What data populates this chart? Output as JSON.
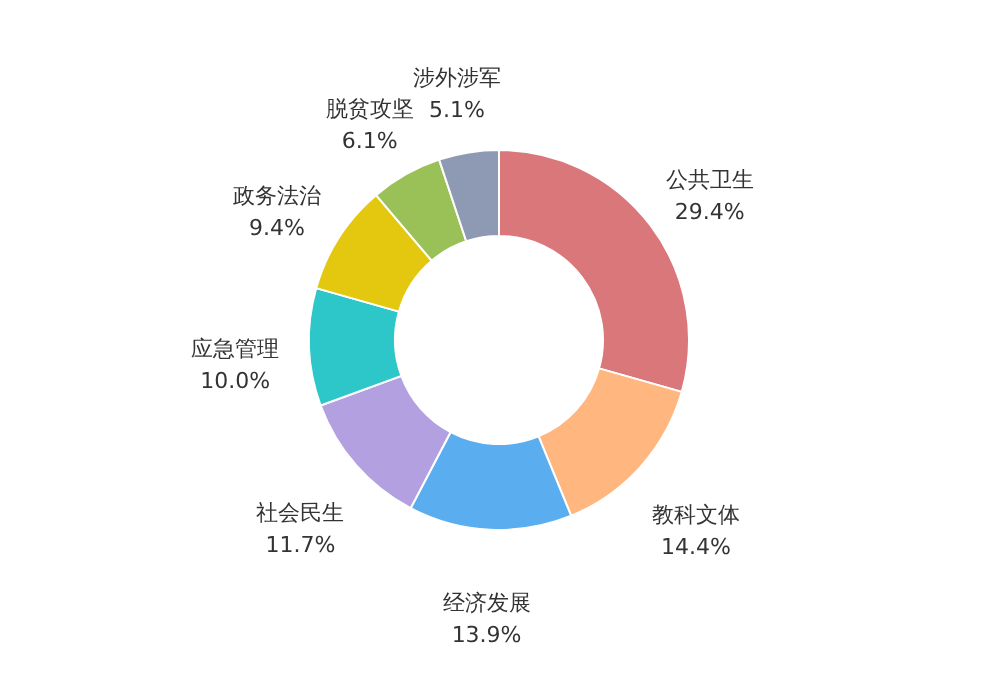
{
  "chart_data": {
    "type": "donut",
    "categories": [
      "公共卫生",
      "教科文体",
      "经济发展",
      "社会民生",
      "应急管理",
      "政务法治",
      "脱贫攻坚",
      "涉外涉军"
    ],
    "values": [
      29.4,
      14.4,
      13.9,
      11.7,
      10.0,
      9.4,
      6.1,
      5.1
    ],
    "colors": [
      "#d9777b",
      "#ffb77f",
      "#5aaef0",
      "#b3a0e0",
      "#2dc7c9",
      "#e3c80f",
      "#9ac058",
      "#8e9ab4"
    ],
    "value_labels": [
      "29.4%",
      "14.4%",
      "13.9%",
      "11.7%",
      "10.0%",
      "9.4%",
      "6.1%",
      "5.1%"
    ],
    "legend": false
  }
}
